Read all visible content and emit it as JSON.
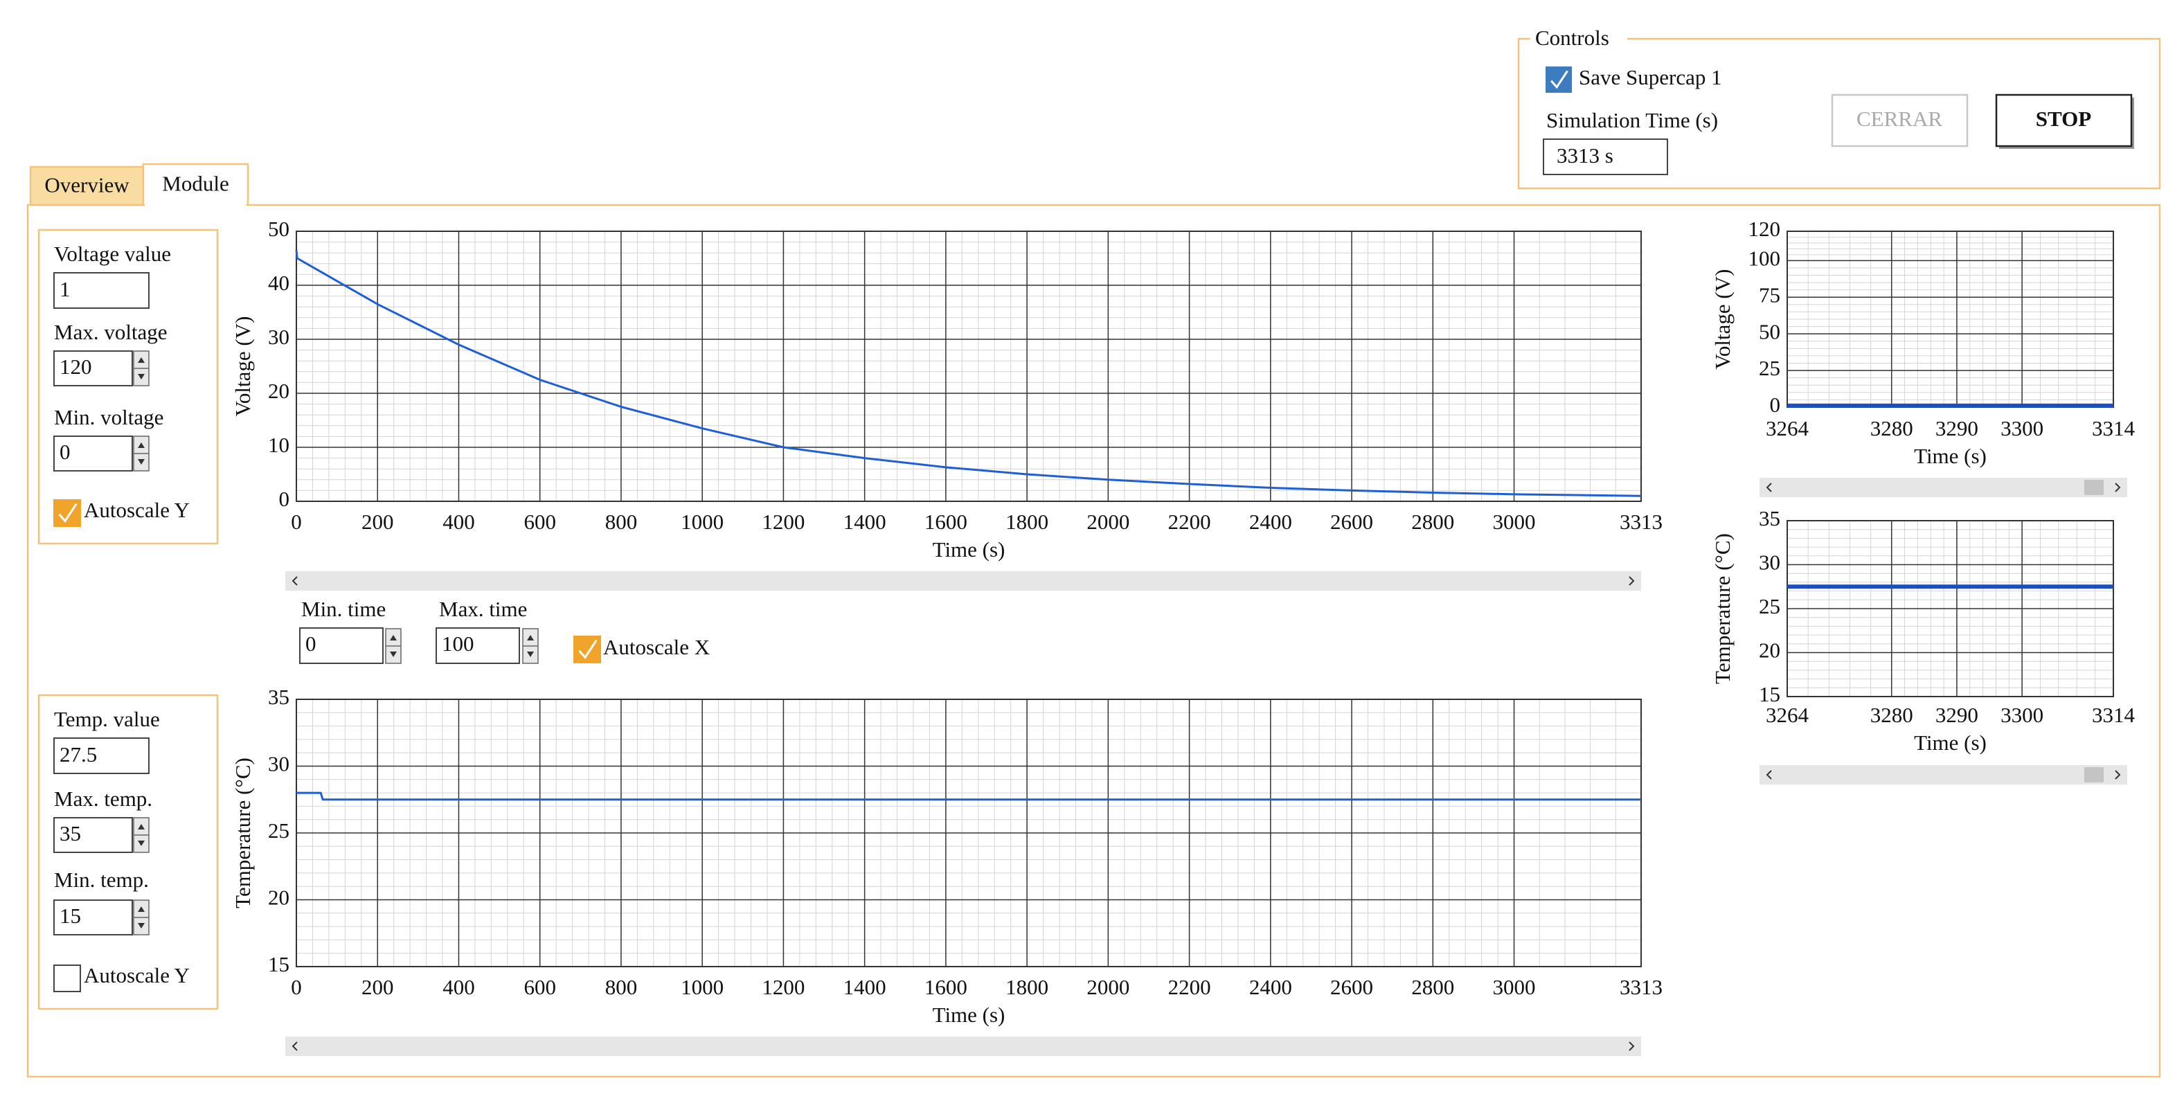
{
  "controls": {
    "title": "Controls",
    "save_label": "Save Supercap 1",
    "save_checked": true,
    "sim_time_label": "Simulation Time (s)",
    "sim_time": "3313 s",
    "cerrar_button": "CERRAR",
    "stop_button": "STOP"
  },
  "tabs": {
    "items": [
      "Overview",
      "Module"
    ],
    "active": 1
  },
  "voltage_settings": {
    "value_label": "Voltage value",
    "value": "1",
    "max_label": "Max. voltage",
    "max": "120",
    "min_label": "Min. voltage",
    "min": "0",
    "autoscale_label": "Autoscale Y",
    "autoscale": true
  },
  "time_settings": {
    "min_label": "Min. time",
    "min": "0",
    "max_label": "Max. time",
    "max": "100",
    "autoscale_label": "Autoscale X",
    "autoscale": true
  },
  "temp_settings": {
    "value_label": "Temp. value",
    "value": "27.5",
    "max_label": "Max. temp.",
    "max": "35",
    "min_label": "Min. temp.",
    "min": "15",
    "autoscale_label": "Autoscale Y",
    "autoscale": false
  },
  "charts": [
    {
      "type": "line",
      "x_label": "Time (s)",
      "y_label": "Voltage (V)",
      "xlim": [
        0,
        3313
      ],
      "ylim": [
        0,
        50
      ],
      "xticks": [
        0,
        200,
        400,
        600,
        800,
        1000,
        1200,
        1400,
        1600,
        1800,
        2000,
        2200,
        2400,
        2600,
        2800,
        3000,
        3313
      ],
      "yticks": [
        0,
        10,
        20,
        30,
        40,
        50
      ],
      "grid": true,
      "color": "#1f5fd6",
      "x": [
        0,
        2,
        200,
        400,
        600,
        800,
        1000,
        1200,
        1400,
        1600,
        1800,
        2000,
        2200,
        2400,
        2600,
        2800,
        3000,
        3313
      ],
      "values": [
        46.5,
        45,
        36.5,
        29,
        22.5,
        17.5,
        13.5,
        10,
        8,
        6.3,
        5,
        4,
        3.2,
        2.5,
        2,
        1.6,
        1.3,
        1
      ]
    },
    {
      "type": "line",
      "x_label": "Time (s)",
      "y_label": "Temperature (°C)",
      "xlim": [
        0,
        3313
      ],
      "ylim": [
        15,
        35
      ],
      "xticks": [
        0,
        200,
        400,
        600,
        800,
        1000,
        1200,
        1400,
        1600,
        1800,
        2000,
        2200,
        2400,
        2600,
        2800,
        3000,
        3313
      ],
      "yticks": [
        15,
        20,
        25,
        30,
        35
      ],
      "grid": true,
      "color": "#1f5fd6",
      "x": [
        0,
        60,
        65,
        3313
      ],
      "values": [
        28,
        28,
        27.5,
        27.5
      ]
    },
    {
      "type": "line",
      "x_label": "Time (s)",
      "y_label": "Voltage (V)",
      "xlim": [
        3264,
        3314
      ],
      "ylim": [
        0,
        120
      ],
      "xticks": [
        3264,
        3280,
        3290,
        3300,
        3314
      ],
      "yticks": [
        0,
        25,
        50,
        75,
        100,
        120
      ],
      "grid": true,
      "color": "#1a4fc4",
      "x": [
        3264,
        3314
      ],
      "values": [
        1,
        1
      ]
    },
    {
      "type": "line",
      "x_label": "Time (s)",
      "y_label": "Temperature (°C)",
      "xlim": [
        3264,
        3314
      ],
      "ylim": [
        15,
        35
      ],
      "xticks": [
        3264,
        3280,
        3290,
        3300,
        3314
      ],
      "yticks": [
        15,
        20,
        25,
        30,
        35
      ],
      "grid": true,
      "color": "#1a4fc4",
      "x": [
        3264,
        3314
      ],
      "values": [
        27.5,
        27.5
      ]
    }
  ]
}
